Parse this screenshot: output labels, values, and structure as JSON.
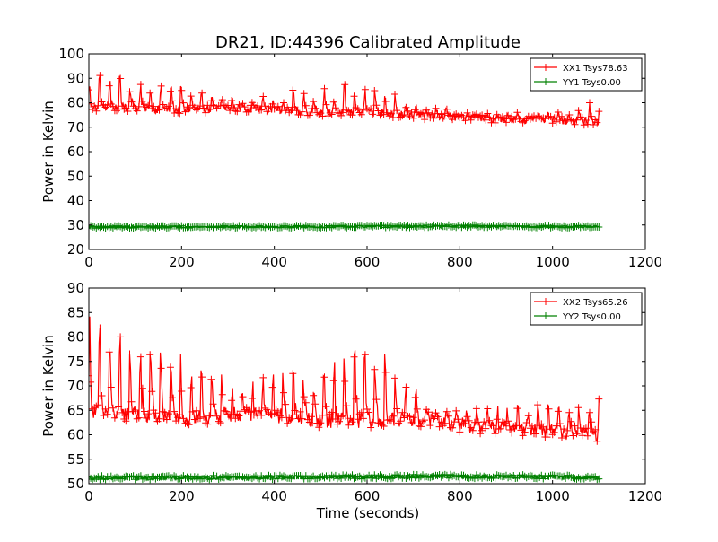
{
  "figure": {
    "title": "DR21, ID:44396 Calibrated Amplitude",
    "xlabel": "Time (seconds)"
  },
  "chart_data": [
    {
      "type": "line",
      "ylabel": "Power in Kelvin",
      "xlim": [
        0,
        1200
      ],
      "ylim": [
        20,
        100
      ],
      "xticks": [
        0,
        200,
        400,
        600,
        800,
        1000,
        1200
      ],
      "yticks": [
        20,
        30,
        40,
        50,
        60,
        70,
        80,
        90,
        100
      ],
      "grid": false,
      "legend_position": "top-right",
      "series": [
        {
          "name": "XX1 Tsys78.63",
          "color": "#ff0000",
          "marker": "+",
          "x_range": [
            0,
            1100
          ],
          "baseline": [
            [
              0,
              78
            ],
            [
              100,
              78
            ],
            [
              200,
              77
            ],
            [
              300,
              78
            ],
            [
              400,
              77
            ],
            [
              500,
              76
            ],
            [
              600,
              76
            ],
            [
              700,
              75
            ],
            [
              800,
              74
            ],
            [
              900,
              73
            ],
            [
              1000,
              73
            ],
            [
              1100,
              72
            ]
          ],
          "peaks": [
            [
              15,
              93
            ],
            [
              45,
              92
            ],
            [
              95,
              90
            ],
            [
              140,
              90
            ],
            [
              180,
              88
            ],
            [
              210,
              86
            ],
            [
              260,
              83
            ],
            [
              300,
              82
            ],
            [
              350,
              82
            ],
            [
              410,
              84
            ],
            [
              460,
              86
            ],
            [
              500,
              86
            ],
            [
              560,
              88
            ],
            [
              600,
              88
            ],
            [
              650,
              85
            ],
            [
              700,
              80
            ],
            [
              800,
              77
            ],
            [
              900,
              76
            ],
            [
              1000,
              77
            ],
            [
              1050,
              77
            ],
            [
              1100,
              82
            ]
          ]
        },
        {
          "name": "YY1 Tsys0.00",
          "color": "#008000",
          "marker": "+",
          "x_range": [
            0,
            1100
          ],
          "baseline": [
            [
              0,
              29.2
            ],
            [
              400,
              29.3
            ],
            [
              800,
              29.5
            ],
            [
              1100,
              29.3
            ]
          ],
          "noise": 0.5
        }
      ]
    },
    {
      "type": "line",
      "ylabel": "Power in Kelvin",
      "xlim": [
        0,
        1200
      ],
      "ylim": [
        50,
        90
      ],
      "xticks": [
        0,
        200,
        400,
        600,
        800,
        1000,
        1200
      ],
      "yticks": [
        50,
        55,
        60,
        65,
        70,
        75,
        80,
        85,
        90
      ],
      "grid": false,
      "legend_position": "top-right",
      "series": [
        {
          "name": "XX2 Tsys65.26",
          "color": "#ff0000",
          "marker": "+",
          "x_range": [
            0,
            1100
          ],
          "baseline": [
            [
              0,
              65
            ],
            [
              100,
              64
            ],
            [
              200,
              63
            ],
            [
              300,
              64
            ],
            [
              400,
              64
            ],
            [
              500,
              63
            ],
            [
              600,
              63
            ],
            [
              700,
              63
            ],
            [
              800,
              62
            ],
            [
              900,
              61
            ],
            [
              1000,
              61
            ],
            [
              1100,
              60
            ]
          ],
          "peaks": [
            [
              15,
              85
            ],
            [
              45,
              83
            ],
            [
              95,
              83
            ],
            [
              140,
              82
            ],
            [
              180,
              79
            ],
            [
              210,
              76
            ],
            [
              260,
              73
            ],
            [
              300,
              72
            ],
            [
              350,
              71
            ],
            [
              410,
              73
            ],
            [
              460,
              74
            ],
            [
              500,
              77
            ],
            [
              560,
              78
            ],
            [
              600,
              79
            ],
            [
              650,
              76
            ],
            [
              700,
              70
            ],
            [
              800,
              66
            ],
            [
              900,
              66
            ],
            [
              1000,
              67
            ],
            [
              1050,
              67
            ],
            [
              1100,
              70
            ]
          ]
        },
        {
          "name": "YY2 Tsys0.00",
          "color": "#008000",
          "marker": "+",
          "x_range": [
            0,
            1100
          ],
          "baseline": [
            [
              0,
              51.2
            ],
            [
              400,
              51.3
            ],
            [
              800,
              51.5
            ],
            [
              1100,
              51.3
            ]
          ],
          "noise": 0.4
        }
      ]
    }
  ]
}
